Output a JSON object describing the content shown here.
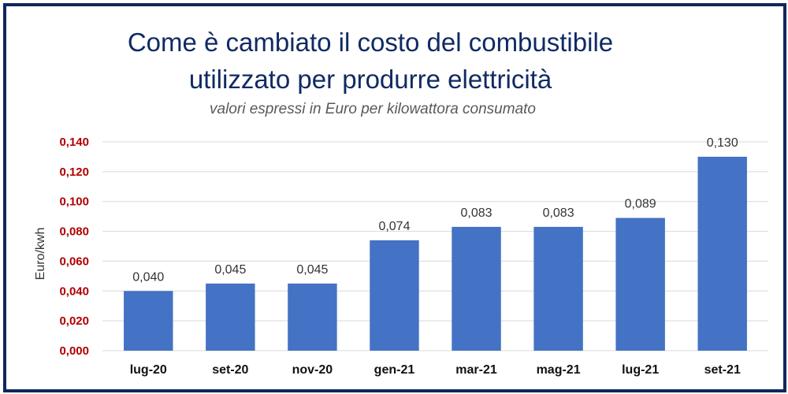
{
  "chart_data": {
    "type": "bar",
    "title_line1": "Come è cambiato il costo del combustibile",
    "title_line2": "utilizzato per produrre elettricità",
    "subtitle": "valori espressi in Euro per kilowattora consumato",
    "ylabel": "Euro/kwh",
    "xlabel": "",
    "categories": [
      "lug-20",
      "set-20",
      "nov-20",
      "gen-21",
      "mar-21",
      "mag-21",
      "lug-21",
      "set-21"
    ],
    "values": [
      0.04,
      0.045,
      0.045,
      0.074,
      0.083,
      0.083,
      0.089,
      0.13
    ],
    "value_labels": [
      "0,040",
      "0,045",
      "0,045",
      "0,074",
      "0,083",
      "0,083",
      "0,089",
      "0,130"
    ],
    "ylim": [
      0,
      0.14
    ],
    "yticks": [
      0,
      0.02,
      0.04,
      0.06,
      0.08,
      0.1,
      0.12,
      0.14
    ],
    "ytick_labels": [
      "0,000",
      "0,020",
      "0,040",
      "0,060",
      "0,080",
      "0,100",
      "0,120",
      "0,140"
    ],
    "grid": true,
    "legend": "none",
    "colors": {
      "bar": "#4472c4",
      "title": "#102a63",
      "ytick": "#b00000",
      "grid": "#d9d9d9",
      "frame": "#10265c"
    }
  }
}
